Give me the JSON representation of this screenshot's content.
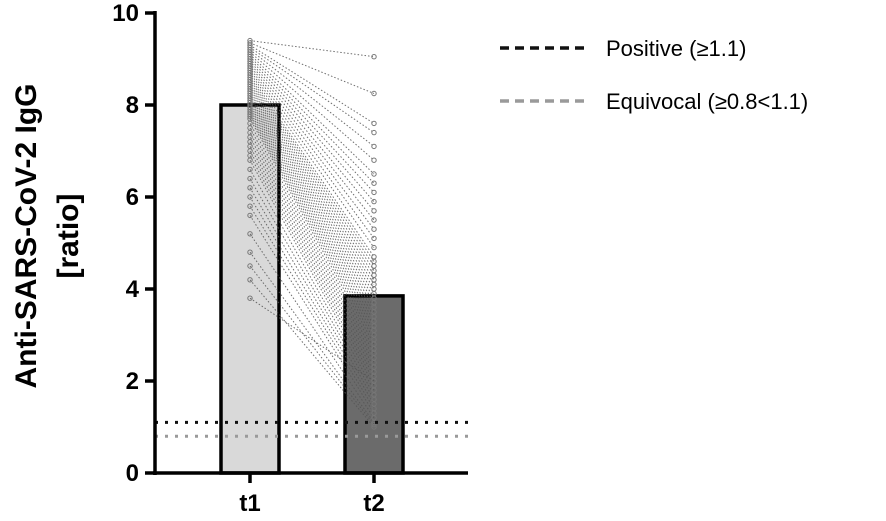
{
  "chart_data": {
    "type": "bar",
    "categories": [
      "t1",
      "t2"
    ],
    "values": [
      8.0,
      3.85
    ],
    "bar_colors": [
      "#d9d9d9",
      "#6b6b6b"
    ],
    "ylabel_line1": "Anti-SARS-CoV-2 IgG",
    "ylabel_line2": "[ratio]",
    "ylim": [
      0,
      10
    ],
    "yticks": [
      "0",
      "2",
      "4",
      "6",
      "8",
      "10"
    ],
    "grid": false,
    "paired_points": {
      "t1": [
        9.4,
        9.35,
        9.3,
        9.25,
        9.2,
        9.15,
        9.1,
        9.05,
        9.0,
        8.95,
        8.9,
        8.85,
        8.8,
        8.75,
        8.7,
        8.65,
        8.6,
        8.55,
        8.5,
        8.45,
        8.4,
        8.35,
        8.3,
        8.25,
        8.2,
        8.15,
        8.1,
        8.05,
        8.0,
        7.95,
        7.9,
        7.85,
        7.8,
        7.75,
        7.7,
        7.6,
        7.5,
        7.4,
        7.3,
        7.2,
        7.1,
        7.0,
        6.9,
        6.8,
        6.6,
        6.4,
        6.2,
        6.0,
        5.8,
        5.6,
        5.2,
        4.8,
        4.5,
        4.2,
        3.8
      ],
      "t2": [
        9.05,
        8.25,
        7.6,
        7.4,
        7.1,
        6.8,
        6.5,
        6.3,
        6.1,
        5.9,
        5.7,
        5.5,
        5.3,
        5.1,
        4.9,
        4.7,
        4.6,
        4.5,
        4.4,
        4.3,
        4.2,
        4.1,
        4.0,
        3.9,
        3.8,
        3.7,
        3.6,
        3.5,
        3.4,
        3.3,
        3.2,
        3.1,
        3.0,
        2.9,
        2.8,
        2.7,
        2.6,
        2.5,
        2.4,
        2.3,
        2.2,
        2.1,
        2.0,
        1.9,
        1.8,
        1.7,
        1.6,
        1.5,
        1.4,
        1.3,
        1.2,
        1.1,
        1.05,
        1.0,
        2.0
      ]
    },
    "reference_lines": [
      {
        "label": "Positive (≥1.1)",
        "value": 1.1,
        "color": "#111111"
      },
      {
        "label": "Equivocal (≥0.8<1.1)",
        "value": 0.8,
        "color": "#9a9a9a"
      }
    ],
    "legend_position": "top-right"
  }
}
